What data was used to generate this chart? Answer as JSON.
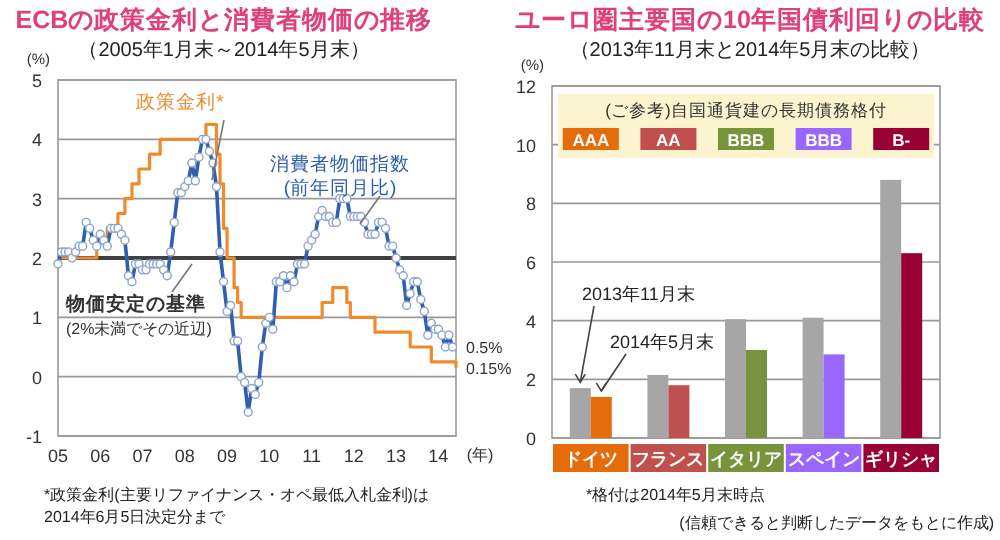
{
  "chart_data": [
    {
      "type": "line",
      "title": "ECBの政策金利と消費者物価の推移",
      "subtitle": "（2005年1月末～2014年5月末）",
      "ylabel": "(%)",
      "xlabel": "(年)",
      "x": [
        "2005-01",
        "2005-02",
        "2005-03",
        "2005-04",
        "2005-05",
        "2005-06",
        "2005-07",
        "2005-08",
        "2005-09",
        "2005-10",
        "2005-11",
        "2005-12",
        "2006-01",
        "2006-02",
        "2006-03",
        "2006-04",
        "2006-05",
        "2006-06",
        "2006-07",
        "2006-08",
        "2006-09",
        "2006-10",
        "2006-11",
        "2006-12",
        "2007-01",
        "2007-02",
        "2007-03",
        "2007-04",
        "2007-05",
        "2007-06",
        "2007-07",
        "2007-08",
        "2007-09",
        "2007-10",
        "2007-11",
        "2007-12",
        "2008-01",
        "2008-02",
        "2008-03",
        "2008-04",
        "2008-05",
        "2008-06",
        "2008-07",
        "2008-08",
        "2008-09",
        "2008-10",
        "2008-11",
        "2008-12",
        "2009-01",
        "2009-02",
        "2009-03",
        "2009-04",
        "2009-05",
        "2009-06",
        "2009-07",
        "2009-08",
        "2009-09",
        "2009-10",
        "2009-11",
        "2009-12",
        "2010-01",
        "2010-02",
        "2010-03",
        "2010-04",
        "2010-05",
        "2010-06",
        "2010-07",
        "2010-08",
        "2010-09",
        "2010-10",
        "2010-11",
        "2010-12",
        "2011-01",
        "2011-02",
        "2011-03",
        "2011-04",
        "2011-05",
        "2011-06",
        "2011-07",
        "2011-08",
        "2011-09",
        "2011-10",
        "2011-11",
        "2011-12",
        "2012-01",
        "2012-02",
        "2012-03",
        "2012-04",
        "2012-05",
        "2012-06",
        "2012-07",
        "2012-08",
        "2012-09",
        "2012-10",
        "2012-11",
        "2012-12",
        "2013-01",
        "2013-02",
        "2013-03",
        "2013-04",
        "2013-05",
        "2013-06",
        "2013-07",
        "2013-08",
        "2013-09",
        "2013-10",
        "2013-11",
        "2013-12",
        "2014-01",
        "2014-02",
        "2014-03",
        "2014-04",
        "2014-05"
      ],
      "series": [
        {
          "name": "政策金利*",
          "type": "step",
          "color": "#f08a2c",
          "marker": "none",
          "x": [
            "2005-01",
            "2005-12",
            "2006-03",
            "2006-06",
            "2006-08",
            "2006-10",
            "2006-12",
            "2007-03",
            "2007-06",
            "2008-07",
            "2008-10",
            "2008-11",
            "2008-12",
            "2009-01",
            "2009-03",
            "2009-04",
            "2009-05",
            "2011-04",
            "2011-07",
            "2011-11",
            "2011-12",
            "2012-07",
            "2013-05",
            "2013-11",
            "2014-06"
          ],
          "values": [
            2.0,
            2.25,
            2.5,
            2.75,
            3.0,
            3.25,
            3.5,
            3.75,
            4.0,
            4.25,
            3.75,
            3.25,
            2.5,
            2.0,
            1.5,
            1.25,
            1.0,
            1.25,
            1.5,
            1.25,
            1.0,
            0.75,
            0.5,
            0.25,
            0.15
          ]
        },
        {
          "name": "消費者物価指数\n(前年同月比)",
          "type": "line",
          "color": "#2f5faf",
          "marker": "circle",
          "values": [
            1.9,
            2.1,
            2.1,
            2.1,
            2.0,
            2.1,
            2.2,
            2.2,
            2.6,
            2.5,
            2.3,
            2.2,
            2.4,
            2.3,
            2.2,
            2.5,
            2.5,
            2.5,
            2.4,
            2.3,
            1.7,
            1.6,
            1.9,
            1.9,
            1.8,
            1.8,
            1.9,
            1.9,
            1.9,
            1.9,
            1.8,
            1.7,
            2.1,
            2.6,
            3.1,
            3.1,
            3.2,
            3.3,
            3.6,
            3.3,
            3.7,
            4.0,
            4.0,
            3.8,
            3.6,
            3.2,
            2.1,
            1.6,
            1.1,
            1.2,
            0.6,
            0.6,
            0.0,
            -0.1,
            -0.6,
            -0.2,
            -0.3,
            -0.1,
            0.5,
            0.9,
            1.0,
            0.8,
            1.6,
            1.6,
            1.7,
            1.5,
            1.7,
            1.6,
            1.9,
            1.9,
            1.9,
            2.2,
            2.3,
            2.4,
            2.7,
            2.8,
            2.7,
            2.7,
            2.6,
            2.6,
            3.0,
            3.0,
            3.0,
            2.7,
            2.7,
            2.7,
            2.7,
            2.6,
            2.4,
            2.4,
            2.4,
            2.6,
            2.6,
            2.5,
            2.2,
            2.2,
            2.0,
            1.8,
            1.7,
            1.2,
            1.4,
            1.6,
            1.6,
            1.3,
            1.1,
            0.7,
            0.9,
            0.8,
            0.8,
            0.7,
            0.5,
            0.7,
            0.5
          ]
        }
      ],
      "xlim": [
        "2005-01",
        "2014-06"
      ],
      "xticks": [
        {
          "value": "2005-01",
          "label": "05"
        },
        {
          "value": "2006-01",
          "label": "06"
        },
        {
          "value": "2007-01",
          "label": "07"
        },
        {
          "value": "2008-01",
          "label": "08"
        },
        {
          "value": "2009-01",
          "label": "09"
        },
        {
          "value": "2010-01",
          "label": "10"
        },
        {
          "value": "2011-01",
          "label": "11"
        },
        {
          "value": "2012-01",
          "label": "12"
        },
        {
          "value": "2013-01",
          "label": "13"
        },
        {
          "value": "2014-01",
          "label": "14"
        }
      ],
      "ylim": [
        -1,
        5
      ],
      "yticks": [
        -1,
        0,
        1,
        2,
        3,
        4,
        5
      ],
      "grid": "y",
      "ref_lines": [
        {
          "axis": "y",
          "value": 2,
          "label": "物価安定の基準",
          "color": "#404040"
        }
      ],
      "annotations": [
        "(2%未満でその近辺)",
        {
          "text": "0.5%",
          "x": "2014-05",
          "y": 0.5
        },
        {
          "text": "0.15%",
          "x": "2014-06",
          "y": 0.15
        },
        "*政策金利(主要リファイナンス・オペ最低入札金利)は\n2014年6月5日決定分まで"
      ]
    },
    {
      "type": "bar",
      "title": "ユーロ圏主要国の10年国債利回りの比較",
      "subtitle": "（2013年11月末と2014年5月末の比較）",
      "ylabel": "(%)",
      "categories": [
        "ドイツ",
        "フランス",
        "イタリア",
        "スペイン",
        "ギリシャ"
      ],
      "series": [
        {
          "name": "2013年11月末",
          "color": "#a6a6a6",
          "values": [
            1.7,
            2.15,
            4.05,
            4.1,
            8.8
          ]
        },
        {
          "name": "2014年5月末",
          "colors": [
            "#e46c0a",
            "#c0504d",
            "#77933c",
            "#9966ff",
            "#990033"
          ],
          "values": [
            1.4,
            1.8,
            3.0,
            2.85,
            6.3
          ]
        }
      ],
      "ylim": [
        0,
        12
      ],
      "yticks": [
        0,
        2,
        4,
        6,
        8,
        10,
        12
      ],
      "grid": "y",
      "annotations": [
        "(ご参考)自国通貨建の長期債務格付",
        {
          "text": "AAA",
          "x": "ドイツ"
        },
        {
          "text": "AA",
          "x": "フランス"
        },
        {
          "text": "BBB",
          "x": "イタリア"
        },
        {
          "text": "BBB",
          "x": "スペイン"
        },
        {
          "text": "B-",
          "x": "ギリシャ"
        },
        "*格付は2014年5月末時点",
        "(信頼できると判断したデータをもとに作成)"
      ]
    }
  ]
}
